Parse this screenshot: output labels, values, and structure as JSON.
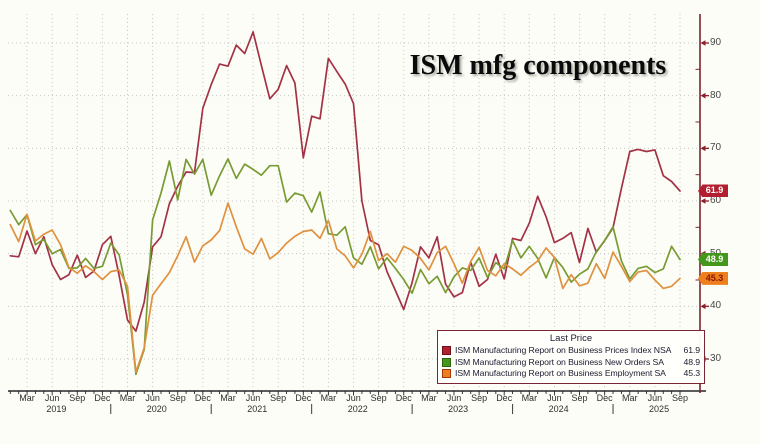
{
  "legend": {
    "title": "Last Price",
    "items": [
      {
        "label": "ISM Manufacturing Report on Business Prices Index NSA",
        "value": "61.9"
      },
      {
        "label": "ISM Manufacturing Report on Business New Orders SA",
        "value": "48.9"
      },
      {
        "label": "ISM Manufacturing Report on Business Employment SA",
        "value": "45.3"
      }
    ]
  },
  "chart_data": {
    "type": "line",
    "title": "ISM mfg components",
    "x_monthly_start": "2019-01",
    "x_monthly_end": "2025-09",
    "x_quarter_tick_labels": [
      "Mar",
      "Jun",
      "Sep",
      "Dec"
    ],
    "x_year_labels": [
      "2019",
      "2020",
      "2021",
      "2022",
      "2023",
      "2024",
      "2025"
    ],
    "y_ticks": [
      30,
      40,
      50,
      60,
      70,
      80,
      90
    ],
    "ylim": [
      23.9,
      95.5
    ],
    "grid": "dotted",
    "grid_color": "#c6c6c6",
    "legend_position": "bottom-right",
    "axis_color_y": "#7d2230",
    "axis_color_x": "#26262a",
    "series": [
      {
        "name": "ISM Manufacturing Report on Business Prices Index NSA",
        "last": 61.9,
        "line_color": "#a33246",
        "swatch_color": "#b11f30",
        "swatch_border": "#701019",
        "badge_bg": "#b11f30",
        "badge_fg": "#ffffff",
        "values": [
          49.6,
          49.4,
          54.3,
          50.0,
          53.2,
          47.9,
          45.1,
          46.0,
          49.7,
          45.5,
          46.7,
          51.7,
          53.3,
          45.9,
          37.4,
          35.3,
          40.8,
          51.3,
          53.2,
          59.5,
          62.8,
          65.5,
          65.4,
          77.6,
          82.1,
          86.0,
          85.6,
          89.6,
          88.0,
          92.1,
          85.7,
          79.4,
          81.2,
          85.7,
          82.4,
          68.2,
          76.1,
          75.6,
          87.1,
          84.6,
          82.2,
          78.5,
          60.0,
          52.5,
          51.7,
          46.6,
          43.0,
          39.4,
          44.5,
          51.3,
          49.2,
          53.2,
          44.2,
          41.8,
          42.6,
          48.4,
          43.8,
          45.1,
          49.9,
          45.2,
          52.9,
          52.5,
          55.8,
          60.9,
          57.0,
          52.1,
          52.9,
          54.0,
          48.3,
          54.8,
          50.3,
          52.5,
          54.9,
          62.4,
          69.4,
          69.8,
          69.4,
          69.7,
          64.8,
          63.7,
          61.9
        ]
      },
      {
        "name": "ISM Manufacturing Report on Business New Orders SA",
        "last": 48.9,
        "line_color": "#789b33",
        "swatch_color": "#43971a",
        "swatch_border": "#2c6410",
        "badge_bg": "#43971a",
        "badge_fg": "#ffffff",
        "values": [
          58.2,
          55.5,
          57.4,
          51.7,
          52.7,
          50.0,
          50.8,
          47.2,
          47.3,
          49.1,
          47.2,
          47.6,
          52.0,
          49.8,
          42.2,
          27.1,
          31.8,
          56.4,
          61.5,
          67.6,
          60.2,
          67.9,
          65.1,
          67.9,
          61.1,
          64.8,
          68.0,
          64.3,
          67.0,
          66.0,
          64.9,
          66.7,
          66.7,
          59.8,
          61.5,
          61.0,
          57.9,
          61.7,
          53.8,
          53.5,
          55.1,
          49.2,
          48.0,
          51.3,
          47.1,
          49.2,
          47.2,
          45.1,
          42.5,
          47.0,
          44.3,
          45.7,
          42.6,
          45.6,
          47.3,
          46.8,
          49.2,
          45.5,
          48.3,
          47.1,
          52.5,
          49.2,
          51.4,
          49.1,
          45.4,
          49.3,
          47.4,
          44.6,
          46.1,
          47.1,
          50.4,
          52.5,
          55.1,
          48.6,
          45.2,
          47.2,
          47.6,
          46.4,
          47.1,
          51.4,
          48.9
        ]
      },
      {
        "name": "ISM Manufacturing Report on Business Employment SA",
        "last": 45.3,
        "line_color": "#e0913f",
        "swatch_color": "#ee7f1d",
        "swatch_border": "#a33708",
        "badge_bg": "#ee7f1d",
        "badge_fg": "#8c1500",
        "values": [
          55.5,
          52.3,
          57.5,
          52.4,
          53.7,
          54.5,
          51.7,
          47.4,
          46.3,
          47.7,
          46.6,
          45.1,
          46.6,
          46.9,
          43.8,
          27.5,
          32.1,
          42.1,
          44.3,
          46.4,
          49.6,
          53.2,
          48.4,
          51.5,
          52.6,
          54.4,
          59.6,
          55.1,
          50.9,
          49.9,
          52.9,
          49.0,
          50.2,
          52.0,
          53.3,
          54.2,
          54.5,
          52.9,
          56.3,
          50.9,
          49.6,
          47.3,
          49.9,
          54.2,
          48.7,
          50.0,
          48.4,
          51.4,
          50.6,
          49.1,
          46.9,
          50.2,
          51.4,
          48.1,
          44.4,
          48.5,
          51.2,
          46.8,
          45.8,
          48.1,
          47.1,
          45.9,
          47.4,
          48.6,
          51.1,
          49.3,
          43.4,
          46.0,
          43.9,
          44.4,
          48.1,
          45.3,
          50.3,
          47.6,
          44.7,
          46.5,
          46.8,
          45.0,
          43.4,
          43.8,
          45.3
        ]
      }
    ]
  }
}
